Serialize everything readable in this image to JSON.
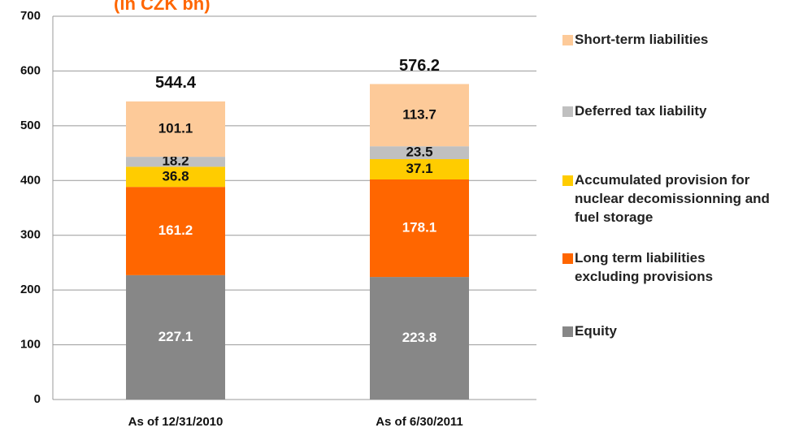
{
  "chart_data": {
    "type": "stacked_bar",
    "title": "(in CZK bn)",
    "categories": [
      "As of 12/31/2010",
      "As of 6/30/2011"
    ],
    "series": [
      {
        "name": "Equity",
        "color": "#878787",
        "values": [
          227.1,
          223.8
        ]
      },
      {
        "name": "Long term liabilities excluding provisions",
        "color": "#ff6600",
        "values": [
          161.2,
          178.1
        ]
      },
      {
        "name": "Accumulated provision for nuclear decomissionning and fuel storage",
        "color": "#ffcc00",
        "values": [
          36.8,
          37.1
        ]
      },
      {
        "name": "Deferred tax liability",
        "color": "#c0c0c0",
        "values": [
          18.2,
          23.5
        ]
      },
      {
        "name": "Short-term liabilities",
        "color": "#fdca99",
        "values": [
          101.1,
          113.7
        ]
      }
    ],
    "totals": [
      544.4,
      576.2
    ],
    "ylim": [
      0,
      700
    ],
    "yticks": [
      0,
      100,
      200,
      300,
      400,
      500,
      600,
      700
    ],
    "grid": true,
    "legend": "right"
  }
}
